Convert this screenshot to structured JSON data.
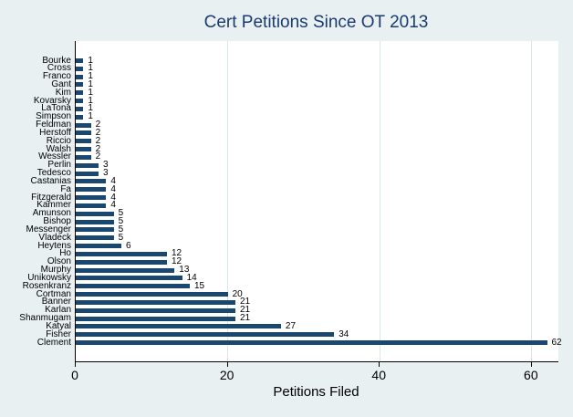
{
  "chart_data": {
    "type": "bar",
    "orientation": "horizontal",
    "title": "Cert Petitions Since OT 2013",
    "xlabel": "Petitions Filed",
    "categories": [
      "Bourke",
      "Cross",
      "Franco",
      "Gant",
      "Kim",
      "Kovarsky",
      "LaTona",
      "Simpson",
      "Feldman",
      "Herstoff",
      "Riccio",
      "Walsh",
      "Wessler",
      "Perlin",
      "Tedesco",
      "Castanias",
      "Fa",
      "Fitzgerald",
      "Kammer",
      "Amunson",
      "Bishop",
      "Messenger",
      "Vladeck",
      "Heytens",
      "Ho",
      "Olson",
      "Murphy",
      "Unikowsky",
      "Rosenkranz",
      "Cortman",
      "Banner",
      "Karlan",
      "Shanmugam",
      "Katyal",
      "Fisher",
      "Clement"
    ],
    "values": [
      1,
      1,
      1,
      1,
      1,
      1,
      1,
      1,
      2,
      2,
      2,
      2,
      2,
      3,
      3,
      4,
      4,
      4,
      4,
      5,
      5,
      5,
      5,
      6,
      12,
      12,
      13,
      14,
      15,
      20,
      21,
      21,
      21,
      27,
      34,
      62
    ],
    "value_labels": [
      "1",
      "1",
      "1",
      "1",
      "1",
      "1",
      "1",
      "1",
      "2",
      "2",
      "2",
      "2",
      "2",
      "3",
      "3",
      "4",
      "4",
      "4",
      "4",
      "5",
      "5",
      "5",
      "5",
      "6",
      "12",
      "12",
      "13",
      "14",
      "15",
      "20",
      "21",
      "21",
      "21",
      "27",
      "34",
      "62"
    ],
    "xticks": [
      0,
      20,
      40,
      60
    ],
    "xtick_labels": [
      "0",
      "20",
      "40",
      "60"
    ],
    "xlim": [
      0,
      63.5
    ],
    "grid": true,
    "legend": "none",
    "colors": {
      "bar": "#1a476f",
      "title": "#1a3a70",
      "background": "#e9f0f2",
      "plot_background": "#ffffff",
      "gridline": "#d9e7ea",
      "axis": "#000000",
      "text": "#000000"
    }
  }
}
